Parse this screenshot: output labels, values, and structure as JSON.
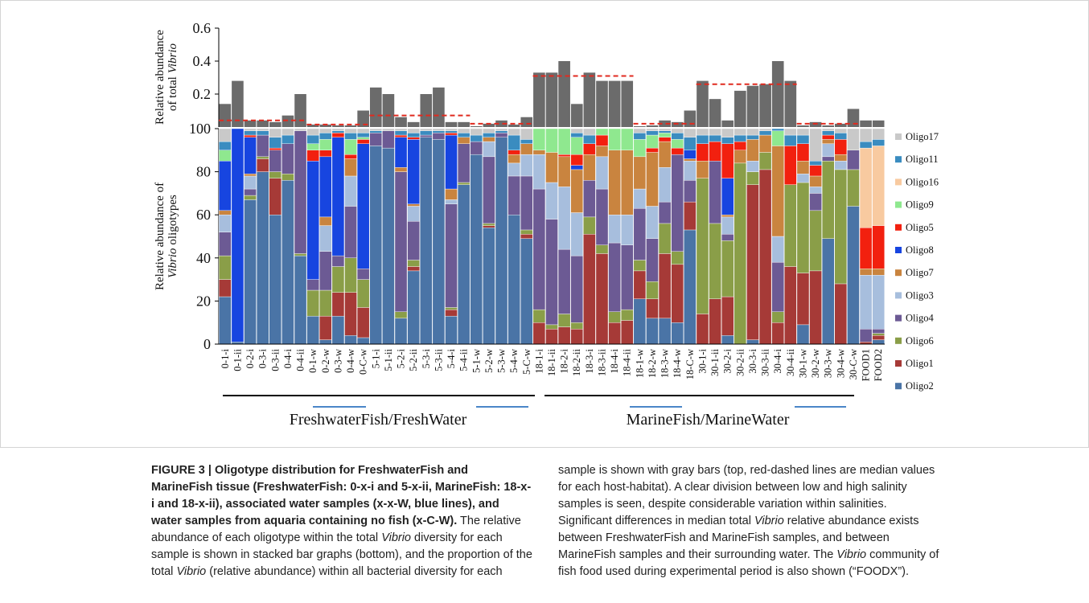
{
  "chart_data": [
    {
      "type": "bar",
      "ylabel": [
        "Relative abundance",
        "of total",
        "Vibrio"
      ],
      "color": "#6b6b6b",
      "ylim": [
        0,
        0.6
      ],
      "yticks": [
        0.2,
        0.4,
        0.6
      ],
      "values": [
        0.14,
        0.28,
        0.04,
        0.04,
        0.03,
        0.07,
        0.2,
        0.015,
        0.015,
        0.01,
        0.01,
        0.1,
        0.24,
        0.2,
        0.06,
        0.03,
        0.2,
        0.24,
        0.03,
        0.03,
        0.005,
        0.02,
        0.04,
        0.015,
        0.06,
        0.33,
        0.33,
        0.4,
        0.14,
        0.33,
        0.28,
        0.28,
        0.28,
        0.005,
        0.01,
        0.04,
        0.03,
        0.1,
        0.28,
        0.17,
        0.04,
        0.22,
        0.25,
        0.26,
        0.4,
        0.28,
        0.01,
        0.03,
        0.01,
        0.02,
        0.11,
        0.04,
        0.04
      ],
      "median_lines": [
        0.04,
        0.015,
        0.07,
        0.02,
        0.31,
        0.02,
        0.26,
        0.02
      ],
      "median_color": "#e02a1f"
    },
    {
      "type": "stacked_bar",
      "ylabel": [
        "Relative abundance of",
        "Vibrio",
        "oligotypes"
      ],
      "ylim": [
        0,
        100
      ],
      "yticks": [
        0,
        20,
        40,
        60,
        80,
        100
      ],
      "categories": [
        "0-1-i",
        "0-1-ii",
        "0-2-i",
        "0-3-i",
        "0-3-ii",
        "0-4-i",
        "0-4-ii",
        "0-1-w",
        "0-2-w",
        "0-3-w",
        "0-4-w",
        "0-C-w",
        "5-1-i",
        "5-1-ii",
        "5-2-i",
        "5-2-ii",
        "5-3-i",
        "5-3-ii",
        "5-4-i",
        "5-4-ii",
        "5-1-w",
        "5-2-w",
        "5-3-w",
        "5-4-w",
        "5-C-w",
        "18-1-i",
        "18-1-ii",
        "18-2-i",
        "18-2-ii",
        "18-3-i",
        "18-3-ii",
        "18-4-i",
        "18-4-ii",
        "18-1-w",
        "18-2-w",
        "18-3-w",
        "18-4-w",
        "18-C-w",
        "30-1-i",
        "30-1-ii",
        "30-2-i",
        "30-2-ii",
        "30-3-i",
        "30-3-ii",
        "30-4-i",
        "30-4-ii",
        "30-1-w",
        "30-2-w",
        "30-3-w",
        "30-4-w",
        "30-C-w",
        "FOOD1",
        "FOOD2"
      ],
      "groups": [
        "FreshwaterFish/FreshWater",
        "MarineFish/MarineWater"
      ],
      "series": [
        {
          "name": "Oligo2",
          "color": "#4a74a6",
          "values": [
            22,
            1,
            67,
            80,
            60,
            76,
            41,
            13,
            2,
            13,
            4,
            3,
            92,
            91,
            12,
            34,
            96,
            95,
            13,
            74,
            88,
            54,
            96,
            60,
            49,
            0,
            0,
            0,
            0,
            0,
            0,
            0,
            0,
            21,
            12,
            12,
            10,
            53,
            0,
            0,
            4,
            0,
            2,
            0,
            0,
            0,
            9,
            0,
            49,
            0,
            64,
            0,
            2
          ]
        },
        {
          "name": "Oligo1",
          "color": "#a63a37",
          "values": [
            8,
            0,
            0,
            6,
            17,
            0,
            0,
            0,
            11,
            11,
            20,
            14,
            0,
            0,
            0,
            2,
            0,
            0,
            3,
            0,
            0,
            1,
            0,
            0,
            2,
            10,
            7,
            8,
            7,
            51,
            42,
            10,
            11,
            13,
            9,
            30,
            27,
            13,
            14,
            21,
            18,
            0,
            72,
            81,
            10,
            36,
            24,
            34,
            0,
            28,
            0,
            1,
            2
          ]
        },
        {
          "name": "Oligo6",
          "color": "#8a9e48",
          "values": [
            11,
            0,
            2,
            1,
            3,
            3,
            1,
            12,
            12,
            12,
            16,
            13,
            0,
            0,
            3,
            3,
            0,
            0,
            1,
            1,
            0,
            1,
            0,
            0,
            2,
            6,
            2,
            6,
            3,
            8,
            4,
            5,
            5,
            5,
            8,
            14,
            6,
            0,
            63,
            35,
            26,
            84,
            6,
            8,
            5,
            38,
            42,
            28,
            36,
            53,
            17,
            0,
            1
          ]
        },
        {
          "name": "Oligo4",
          "color": "#6c5a94",
          "values": [
            11,
            0,
            3,
            10,
            10,
            14,
            57,
            5,
            18,
            5,
            24,
            5,
            6,
            8,
            65,
            18,
            1,
            3,
            48,
            18,
            6,
            31,
            2,
            18,
            25,
            56,
            49,
            30,
            31,
            17,
            26,
            32,
            30,
            24,
            20,
            10,
            45,
            10,
            0,
            29,
            3,
            0,
            0,
            0,
            23,
            0,
            0,
            8,
            2,
            0,
            9,
            6,
            2
          ]
        },
        {
          "name": "Oligo3",
          "color": "#a7bedd",
          "values": [
            8,
            0,
            6,
            0,
            0,
            0,
            0,
            0,
            12,
            0,
            14,
            0,
            0,
            0,
            0,
            7,
            0,
            0,
            2,
            0,
            0,
            7,
            0,
            6,
            10,
            16,
            17,
            29,
            20,
            0,
            15,
            13,
            14,
            9,
            15,
            16,
            0,
            9,
            0,
            0,
            8,
            0,
            5,
            0,
            12,
            0,
            4,
            3,
            6,
            4,
            0,
            25,
            25
          ]
        },
        {
          "name": "Oligo7",
          "color": "#c9843f",
          "values": [
            2,
            0,
            1,
            0,
            0,
            0,
            0,
            0,
            4,
            0,
            8,
            0,
            0,
            0,
            2,
            1,
            0,
            0,
            5,
            3,
            0,
            2,
            0,
            4,
            5,
            2,
            14,
            14,
            20,
            12,
            5,
            30,
            30,
            15,
            25,
            12,
            0,
            1,
            8,
            0,
            1,
            6,
            10,
            8,
            42,
            0,
            6,
            5,
            2,
            3,
            0,
            3,
            3
          ]
        },
        {
          "name": "Oligo8",
          "color": "#1745e0",
          "values": [
            23,
            99,
            17,
            0,
            0,
            0,
            0,
            55,
            28,
            55,
            0,
            58,
            0,
            0,
            14,
            30,
            0,
            0,
            25,
            0,
            0,
            0,
            0,
            0,
            0,
            0,
            0,
            0,
            2,
            0,
            0,
            0,
            0,
            0,
            0,
            0,
            0,
            4,
            0,
            0,
            17,
            0,
            0,
            0,
            0,
            0,
            0,
            0,
            0,
            0,
            0,
            0,
            0
          ]
        },
        {
          "name": "Oligo5",
          "color": "#f2200f",
          "values": [
            0,
            0,
            1,
            0,
            1,
            0,
            0,
            5,
            3,
            2,
            2,
            2,
            0,
            0,
            1,
            1,
            0,
            0,
            1,
            0,
            0,
            0,
            0,
            2,
            0,
            0,
            0,
            1,
            5,
            5,
            5,
            0,
            0,
            0,
            2,
            2,
            3,
            0,
            8,
            9,
            16,
            4,
            0,
            0,
            0,
            18,
            8,
            5,
            2,
            7,
            0,
            19,
            20
          ]
        },
        {
          "name": "Oligo9",
          "color": "#8fe88f",
          "values": [
            5,
            0,
            0,
            0,
            0,
            0,
            0,
            3,
            5,
            0,
            7,
            1,
            0,
            0,
            0,
            0,
            0,
            0,
            0,
            0,
            0,
            0,
            0,
            0,
            0,
            10,
            11,
            12,
            8,
            0,
            3,
            10,
            10,
            8,
            6,
            2,
            4,
            0,
            0,
            0,
            0,
            0,
            0,
            0,
            7,
            0,
            0,
            0,
            0,
            0,
            0,
            0,
            0
          ]
        },
        {
          "name": "Oligo16",
          "color": "#f8caa0",
          "values": [
            0,
            0,
            0,
            0,
            0,
            0,
            0,
            0,
            0,
            0,
            0,
            0,
            0,
            0,
            0,
            0,
            0,
            0,
            0,
            0,
            0,
            0,
            0,
            0,
            0,
            0,
            0,
            0,
            0,
            0,
            0,
            0,
            0,
            0,
            0,
            0,
            0,
            0,
            0,
            0,
            0,
            0,
            0,
            0,
            0,
            0,
            0,
            0,
            0,
            0,
            0,
            37,
            37
          ]
        },
        {
          "name": "Oligo11",
          "color": "#3a8cc0",
          "values": [
            4,
            0,
            2,
            2,
            5,
            4,
            0,
            4,
            3,
            1,
            3,
            2,
            1,
            0,
            2,
            2,
            2,
            1,
            1,
            2,
            3,
            2,
            1,
            7,
            2,
            0,
            0,
            0,
            2,
            4,
            0,
            0,
            0,
            3,
            2,
            1,
            3,
            6,
            4,
            3,
            3,
            3,
            2,
            2,
            1,
            5,
            4,
            2,
            2,
            3,
            0,
            3,
            3
          ]
        },
        {
          "name": "Oligo17",
          "color": "#c9c9c9",
          "values": [
            6,
            0,
            1,
            1,
            4,
            3,
            1,
            3,
            2,
            1,
            2,
            2,
            1,
            1,
            1,
            2,
            1,
            1,
            1,
            2,
            3,
            2,
            1,
            3,
            5,
            0,
            0,
            0,
            2,
            3,
            0,
            0,
            0,
            2,
            1,
            1,
            2,
            4,
            3,
            3,
            4,
            3,
            3,
            1,
            0,
            3,
            3,
            15,
            1,
            2,
            10,
            6,
            5
          ]
        }
      ]
    }
  ],
  "caption": [
    "FIGURE 3 | Oligotype distribution for FreshwaterFish and MarineFish tissue (FreshwaterFish: 0-x-i and 5-x-ii, MarineFish: 18-x-i and 18-x-ii), associated water samples (x-x-W, blue lines), and water samples from aquaria containing no fish (x-C-W).",
    " The relative abundance of each oligotype within the total ",
    "Vibrio",
    " diversity for each sample is shown in stacked bar graphs (bottom), and the proportion of the total ",
    "Vibrio",
    " (relative abundance) within all bacterial diversity for each sample is shown with gray bars (top, red-dashed lines are median values for each host-habitat). A clear division between low and high salinity samples is seen, despite considerable variation within salinities. Significant differences in median total ",
    "Vibrio",
    " relative abundance exists between FreshwaterFish and MarineFish samples, and between MarineFish samples and their surrounding water. The ",
    "Vibrio",
    " community of fish food used during experimental period is also shown (“FOODX”)."
  ]
}
